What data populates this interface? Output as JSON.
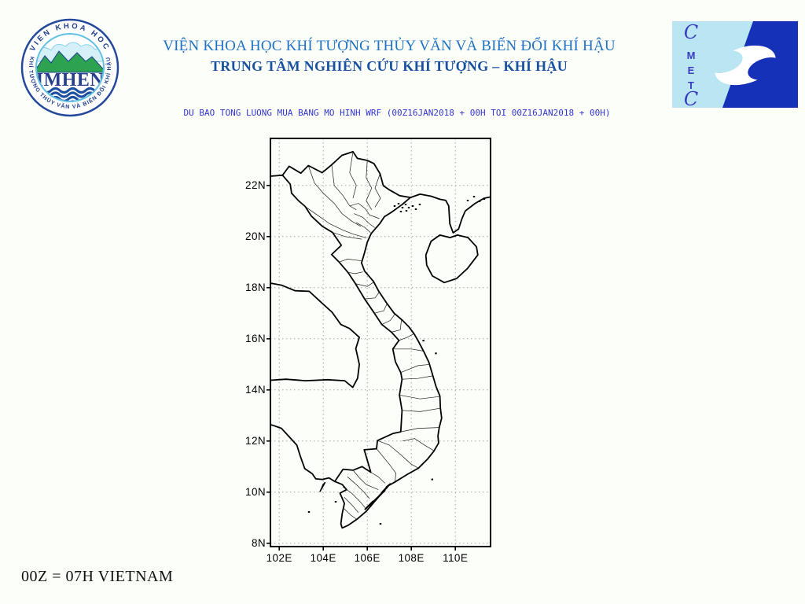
{
  "page": {
    "background": "#fcfefa"
  },
  "header": {
    "line1": "VIỆN KHOA HỌC KHÍ TƯỢNG THỦY VĂN VÀ BIẾN ĐỔI KHÍ HẬU",
    "line2": "TRUNG TÂM NGHIÊN CỨU KHÍ TƯỢNG – KHÍ HẬU",
    "line1_color": "#1e71c4",
    "line2_color": "#17519f"
  },
  "map": {
    "title": "DU BAO TONG LUONG MUA BANG MO HINH WRF (00Z16JAN2018 + 00H TOI 00Z16JAN2018 + 00H)",
    "title_color": "#3434cf",
    "x_ticks": [
      {
        "label": "102E",
        "lon": 102
      },
      {
        "label": "104E",
        "lon": 104
      },
      {
        "label": "106E",
        "lon": 106
      },
      {
        "label": "108E",
        "lon": 108
      },
      {
        "label": "110E",
        "lon": 110
      }
    ],
    "y_ticks": [
      {
        "label": "22N",
        "lat": 22
      },
      {
        "label": "20N",
        "lat": 20
      },
      {
        "label": "18N",
        "lat": 18
      },
      {
        "label": "16N",
        "lat": 16
      },
      {
        "label": "14N",
        "lat": 14
      },
      {
        "label": "12N",
        "lat": 12
      },
      {
        "label": "10N",
        "lat": 10
      },
      {
        "label": "8N",
        "lat": 8
      }
    ],
    "axis": {
      "lon_min": 101.6,
      "lon_max": 111.6,
      "lat_min": 7.87,
      "lat_max": 23.84
    },
    "grid": {
      "style": "dotted",
      "color": "#a8a8a8"
    },
    "coast_color": "#000000"
  },
  "footer": {
    "note": "00Z = 07H VIETNAM"
  },
  "logos": {
    "imhen": {
      "ring_top": "VIEN KHOA HOC",
      "ring_bottom": "KHÍ TƯỢNG THỦY VĂN VÀ BIẾN ĐỔI KHÍ HẬU",
      "acronym": "IMHEN",
      "ring_color": "#1d3e8f",
      "mountain_color": "#2da351",
      "wave_color": "#1c4f9f"
    },
    "cmetc": {
      "letters": [
        "C",
        "M",
        "E",
        "T",
        "C"
      ],
      "light_color": "#b9e6f2",
      "dark_color": "#1431b8",
      "letter_color": "#3b3bc0"
    }
  }
}
